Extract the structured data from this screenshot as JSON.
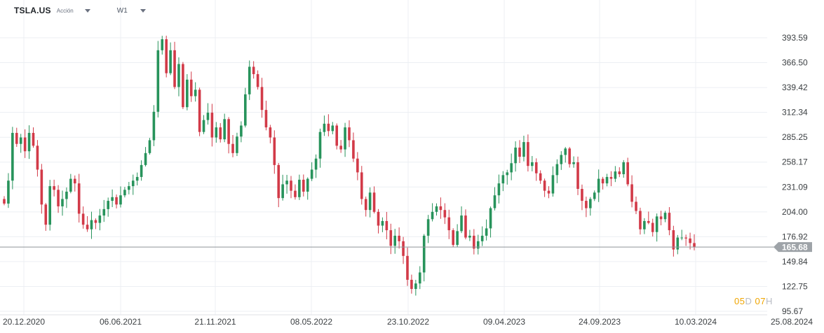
{
  "header": {
    "symbol": "TSLA.US",
    "asset_type": "Acción",
    "timeframe": "W1",
    "caret_icon": "chevron-down-icon"
  },
  "countdown": {
    "days": "05",
    "days_unit": "D",
    "hours": "07",
    "hours_unit": "H"
  },
  "colors": {
    "up": "#27935b",
    "down": "#d23a48",
    "grid": "#eceff3",
    "price_line": "#8f9499",
    "price_badge": "#9ea3a8",
    "axis_text": "#3c4043",
    "countdown_accent": "#f0a500"
  },
  "chart_data": {
    "type": "candlestick",
    "title": "",
    "xlabel": "",
    "ylabel": "",
    "ylim": [
      95.67,
      406.0
    ],
    "y_ticks": [
      "393.59",
      "366.50",
      "339.42",
      "312.34",
      "285.25",
      "258.17",
      "231.09",
      "204.00",
      "176.92",
      "149.84",
      "122.75",
      "95.67"
    ],
    "x_ticks": [
      "20.12.2020",
      "06.06.2021",
      "21.11.2021",
      "08.05.2022",
      "23.10.2022",
      "09.04.2023",
      "24.09.2023",
      "10.03.2024",
      "25.08.2024"
    ],
    "current_price": 165.68,
    "current_price_label": "165.68",
    "grid": true,
    "x_axis_position": "bottom",
    "y_axis_position": "right",
    "closes": [
      213,
      238,
      290,
      278,
      285,
      270,
      290,
      276,
      250,
      212,
      190,
      232,
      228,
      210,
      218,
      226,
      240,
      235,
      202,
      190,
      185,
      195,
      192,
      200,
      207,
      216,
      220,
      212,
      222,
      228,
      232,
      238,
      242,
      255,
      268,
      282,
      313,
      380,
      392,
      355,
      380,
      340,
      365,
      318,
      348,
      330,
      337,
      291,
      304,
      312,
      285,
      296,
      283,
      305,
      278,
      268,
      286,
      298,
      332,
      362,
      354,
      340,
      315,
      296,
      285,
      255,
      219,
      234,
      238,
      227,
      220,
      239,
      226,
      240,
      250,
      262,
      291,
      300,
      292,
      298,
      276,
      272,
      296,
      282,
      262,
      247,
      218,
      206,
      225,
      204,
      189,
      194,
      184,
      167,
      178,
      172,
      156,
      130,
      120,
      126,
      138,
      178,
      196,
      204,
      210,
      206,
      198,
      184,
      168,
      183,
      200,
      176,
      178,
      164,
      172,
      178,
      186,
      208,
      222,
      235,
      244,
      247,
      257,
      274,
      264,
      280,
      254,
      258,
      246,
      238,
      227,
      224,
      244,
      256,
      266,
      273,
      256,
      258,
      229,
      216,
      208,
      218,
      225,
      240,
      235,
      242,
      240,
      248,
      245,
      258,
      234,
      215,
      205,
      185,
      194,
      192,
      182,
      199,
      196,
      203,
      184,
      163,
      176,
      176,
      175,
      170,
      166
    ]
  }
}
